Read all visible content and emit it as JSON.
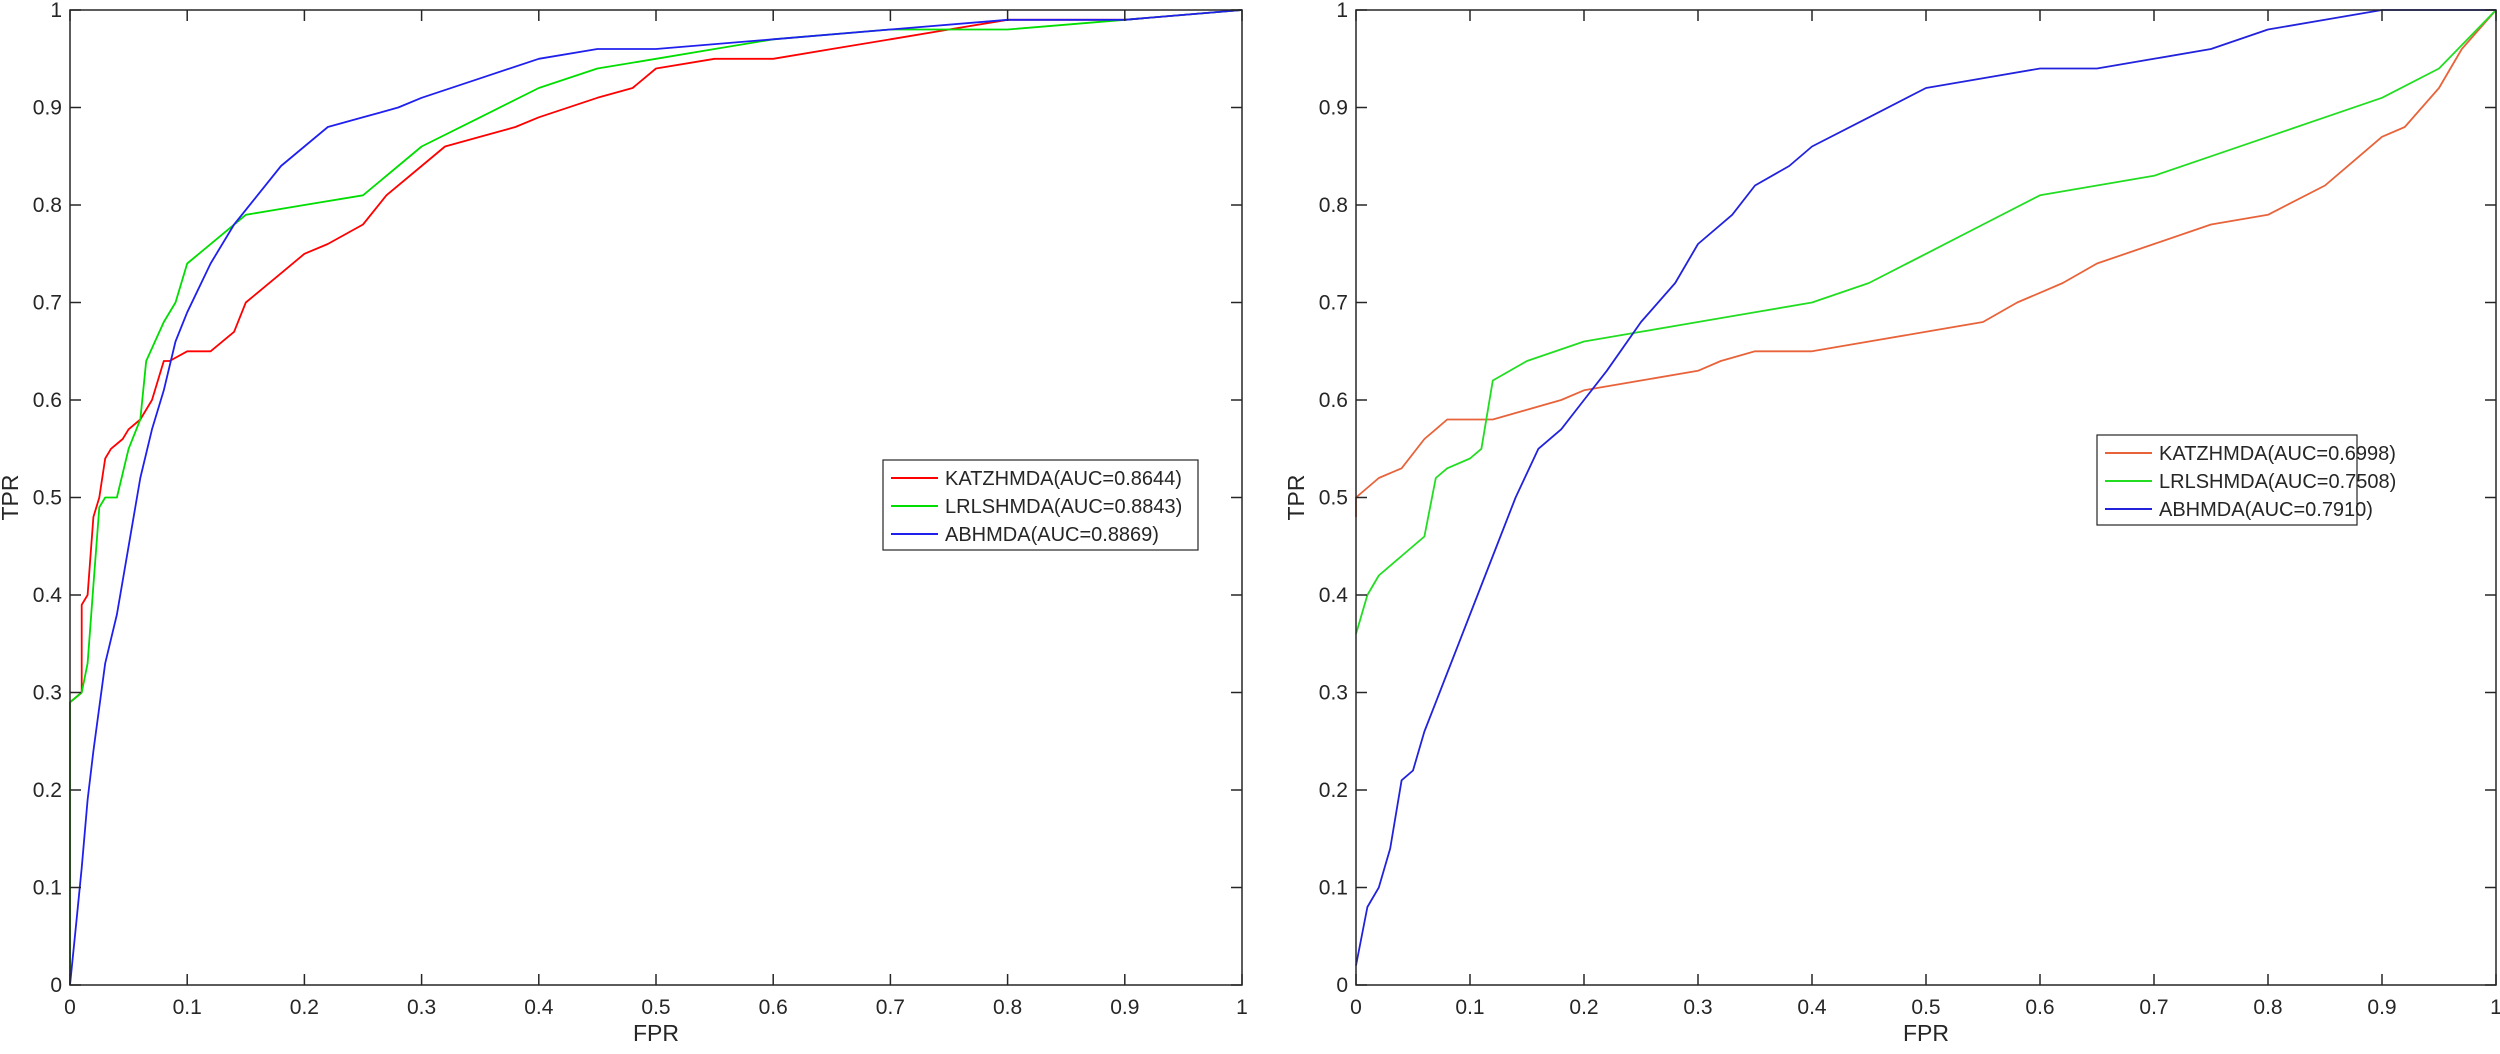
{
  "chart_data": [
    {
      "type": "line",
      "xlabel": "FPR",
      "ylabel": "TPR",
      "xlim": [
        0,
        1
      ],
      "ylim": [
        0,
        1
      ],
      "xticks": [
        "0",
        "0.1",
        "0.2",
        "0.3",
        "0.4",
        "0.5",
        "0.6",
        "0.7",
        "0.8",
        "0.9",
        "1"
      ],
      "yticks": [
        "0",
        "0.1",
        "0.2",
        "0.3",
        "0.4",
        "0.5",
        "0.6",
        "0.7",
        "0.8",
        "0.9",
        "1"
      ],
      "grid": false,
      "legend_position": "right-middle",
      "series": [
        {
          "name": "KATZHMDA(AUC=0.8644)",
          "color": "#ff0000",
          "x": [
            0,
            0,
            0.01,
            0.01,
            0.015,
            0.02,
            0.025,
            0.03,
            0.035,
            0.045,
            0.05,
            0.06,
            0.07,
            0.08,
            0.085,
            0.1,
            0.12,
            0.14,
            0.15,
            0.16,
            0.18,
            0.2,
            0.22,
            0.25,
            0.27,
            0.3,
            0.32,
            0.35,
            0.38,
            0.4,
            0.45,
            0.48,
            0.5,
            0.55,
            0.6,
            0.65,
            0.7,
            0.75,
            0.8,
            0.9,
            1
          ],
          "y": [
            0,
            0.29,
            0.3,
            0.39,
            0.4,
            0.48,
            0.5,
            0.54,
            0.55,
            0.56,
            0.57,
            0.58,
            0.6,
            0.64,
            0.64,
            0.65,
            0.65,
            0.67,
            0.7,
            0.71,
            0.73,
            0.75,
            0.76,
            0.78,
            0.81,
            0.84,
            0.86,
            0.87,
            0.88,
            0.89,
            0.91,
            0.92,
            0.94,
            0.95,
            0.95,
            0.96,
            0.97,
            0.98,
            0.99,
            0.99,
            1
          ]
        },
        {
          "name": "LRLSHMDA(AUC=0.8843)",
          "color": "#00dd00",
          "x": [
            0,
            0,
            0.01,
            0.015,
            0.02,
            0.025,
            0.03,
            0.04,
            0.05,
            0.06,
            0.065,
            0.08,
            0.09,
            0.1,
            0.11,
            0.13,
            0.15,
            0.2,
            0.25,
            0.28,
            0.3,
            0.35,
            0.4,
            0.45,
            0.5,
            0.55,
            0.6,
            0.7,
            0.8,
            0.9,
            1
          ],
          "y": [
            0,
            0.29,
            0.3,
            0.33,
            0.41,
            0.49,
            0.5,
            0.5,
            0.55,
            0.58,
            0.64,
            0.68,
            0.7,
            0.74,
            0.75,
            0.77,
            0.79,
            0.8,
            0.81,
            0.84,
            0.86,
            0.89,
            0.92,
            0.94,
            0.95,
            0.96,
            0.97,
            0.98,
            0.98,
            0.99,
            1
          ]
        },
        {
          "name": "ABHMDA(AUC=0.8869)",
          "color": "#2020ee",
          "x": [
            0,
            0.005,
            0.01,
            0.015,
            0.02,
            0.03,
            0.04,
            0.05,
            0.06,
            0.07,
            0.08,
            0.09,
            0.1,
            0.12,
            0.14,
            0.16,
            0.18,
            0.2,
            0.22,
            0.25,
            0.28,
            0.3,
            0.35,
            0.4,
            0.45,
            0.5,
            0.6,
            0.7,
            0.8,
            0.9,
            1
          ],
          "y": [
            0,
            0.06,
            0.12,
            0.19,
            0.24,
            0.33,
            0.38,
            0.45,
            0.52,
            0.57,
            0.61,
            0.66,
            0.69,
            0.74,
            0.78,
            0.81,
            0.84,
            0.86,
            0.88,
            0.89,
            0.9,
            0.91,
            0.93,
            0.95,
            0.96,
            0.96,
            0.97,
            0.98,
            0.99,
            0.99,
            1
          ]
        }
      ]
    },
    {
      "type": "line",
      "xlabel": "FPR",
      "ylabel": "TPR",
      "xlim": [
        0,
        1
      ],
      "ylim": [
        0,
        1
      ],
      "xticks": [
        "0",
        "0.1",
        "0.2",
        "0.3",
        "0.4",
        "0.5",
        "0.6",
        "0.7",
        "0.8",
        "0.9",
        "1"
      ],
      "yticks": [
        "0",
        "0.1",
        "0.2",
        "0.3",
        "0.4",
        "0.5",
        "0.6",
        "0.7",
        "0.8",
        "0.9",
        "1"
      ],
      "grid": false,
      "legend_position": "right-middle",
      "series": [
        {
          "name": "KATZHMDA(AUC=0.6998)",
          "color": "#e8633a",
          "x": [
            0,
            0,
            0.02,
            0.04,
            0.06,
            0.07,
            0.08,
            0.1,
            0.12,
            0.15,
            0.18,
            0.2,
            0.25,
            0.3,
            0.32,
            0.35,
            0.4,
            0.45,
            0.5,
            0.55,
            0.58,
            0.6,
            0.62,
            0.65,
            0.7,
            0.75,
            0.8,
            0.85,
            0.88,
            0.9,
            0.92,
            0.95,
            0.97,
            1
          ],
          "y": [
            0.48,
            0.5,
            0.52,
            0.53,
            0.56,
            0.57,
            0.58,
            0.58,
            0.58,
            0.59,
            0.6,
            0.61,
            0.62,
            0.63,
            0.64,
            0.65,
            0.65,
            0.66,
            0.67,
            0.68,
            0.7,
            0.71,
            0.72,
            0.74,
            0.76,
            0.78,
            0.79,
            0.82,
            0.85,
            0.87,
            0.88,
            0.92,
            0.96,
            1
          ]
        },
        {
          "name": "LRLSHMDA(AUC=0.7508)",
          "color": "#22dd22",
          "x": [
            0,
            0.01,
            0.02,
            0.04,
            0.06,
            0.07,
            0.08,
            0.1,
            0.11,
            0.12,
            0.15,
            0.2,
            0.25,
            0.3,
            0.35,
            0.4,
            0.45,
            0.5,
            0.55,
            0.6,
            0.65,
            0.7,
            0.75,
            0.8,
            0.85,
            0.9,
            0.95,
            1
          ],
          "y": [
            0.36,
            0.4,
            0.42,
            0.44,
            0.46,
            0.52,
            0.53,
            0.54,
            0.55,
            0.62,
            0.64,
            0.66,
            0.67,
            0.68,
            0.69,
            0.7,
            0.72,
            0.75,
            0.78,
            0.81,
            0.82,
            0.83,
            0.85,
            0.87,
            0.89,
            0.91,
            0.94,
            1
          ]
        },
        {
          "name": "ABHMDA(AUC=0.7910)",
          "color": "#2222dd",
          "x": [
            0,
            0.01,
            0.02,
            0.03,
            0.04,
            0.05,
            0.06,
            0.07,
            0.08,
            0.09,
            0.1,
            0.12,
            0.14,
            0.16,
            0.18,
            0.2,
            0.22,
            0.25,
            0.28,
            0.3,
            0.33,
            0.35,
            0.38,
            0.4,
            0.45,
            0.5,
            0.55,
            0.6,
            0.65,
            0.7,
            0.75,
            0.8,
            0.85,
            0.9,
            0.95,
            1
          ],
          "y": [
            0.02,
            0.08,
            0.1,
            0.14,
            0.21,
            0.22,
            0.26,
            0.29,
            0.32,
            0.35,
            0.38,
            0.44,
            0.5,
            0.55,
            0.57,
            0.6,
            0.63,
            0.68,
            0.72,
            0.76,
            0.79,
            0.82,
            0.84,
            0.86,
            0.89,
            0.92,
            0.93,
            0.94,
            0.94,
            0.95,
            0.96,
            0.98,
            0.99,
            1,
            1,
            1
          ]
        }
      ]
    }
  ]
}
